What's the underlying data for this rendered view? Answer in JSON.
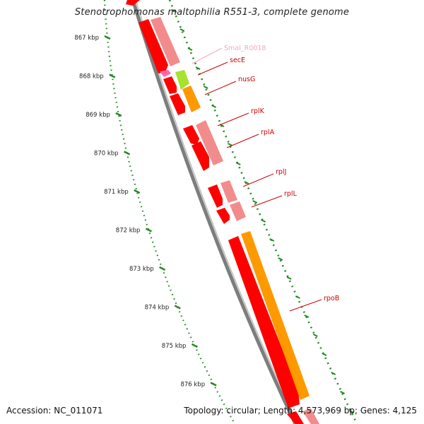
{
  "title": "Stenotrophomonas maltophilia R551-3, complete genome",
  "footer": {
    "accession": "Accession: NC_011071",
    "topology": "Topology: circular; Length: 4,573,969 bp; Genes: 4,125"
  },
  "ticks": [
    "867 kbp",
    "868 kbp",
    "869 kbp",
    "870 kbp",
    "871 kbp",
    "872 kbp",
    "873 kbp",
    "874 kbp",
    "875 kbp",
    "876 kbp"
  ],
  "genes": [
    {
      "name": "SmaI_R0018",
      "color": "#f4a6c9"
    },
    {
      "name": "secE",
      "color": "#cc0000"
    },
    {
      "name": "nusG",
      "color": "#cc0000"
    },
    {
      "name": "rplK",
      "color": "#cc0000"
    },
    {
      "name": "rplA",
      "color": "#cc0000"
    },
    {
      "name": "rplJ",
      "color": "#cc0000"
    },
    {
      "name": "rplL",
      "color": "#cc0000"
    },
    {
      "name": "rpoB",
      "color": "#cc0000"
    }
  ],
  "colors": {
    "cds_forward": "#ff0000",
    "cds_shade": "#f28c8c",
    "orange_feature": "#ff9900",
    "green_feature": "#a6e22e",
    "pink_feature": "#ff66aa",
    "backbone": "#8a8a8a",
    "tick_dots": "#1f8a1f"
  }
}
